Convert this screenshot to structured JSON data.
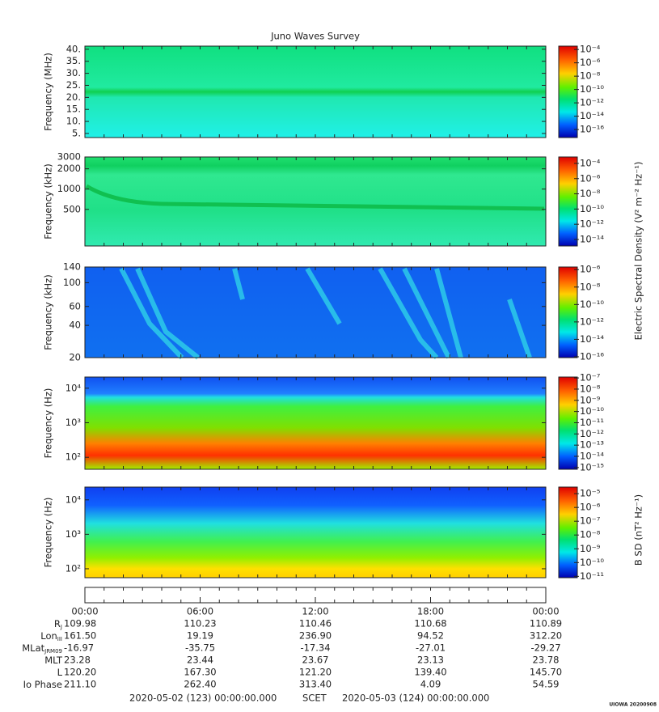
{
  "title": "Juno Waves Survey",
  "chart_data": [
    {
      "type": "spectrogram",
      "ylabel": "Frequency (MHz)",
      "log_y": false,
      "ylim": [
        3.3,
        41.3
      ],
      "yticks": [
        {
          "value": 5,
          "label": "5."
        },
        {
          "value": 10,
          "label": "10."
        },
        {
          "value": 15,
          "label": "15."
        },
        {
          "value": 20,
          "label": "20."
        },
        {
          "value": 25,
          "label": "25."
        },
        {
          "value": 30,
          "label": "30."
        },
        {
          "value": 35,
          "label": "35."
        },
        {
          "value": 40,
          "label": "40."
        }
      ],
      "clim": [
        6.3e-18,
        0.00032
      ],
      "cticks": [
        {
          "value": 0.0001,
          "label": "10⁻⁴"
        },
        {
          "value": 1e-06,
          "label": "10⁻⁶"
        },
        {
          "value": 1e-08,
          "label": "10⁻⁸"
        },
        {
          "value": 1e-10,
          "label": "10⁻¹⁰"
        },
        {
          "value": 1e-12,
          "label": "10⁻¹²"
        },
        {
          "value": 1e-14,
          "label": "10⁻¹⁴"
        },
        {
          "value": 1e-16,
          "label": "10⁻¹⁶"
        }
      ]
    },
    {
      "type": "spectrogram",
      "ylabel": "Frequency (kHz)",
      "log_y": true,
      "ylim": [
        143,
        3000
      ],
      "yticks": [
        500,
        1000,
        2000,
        3000
      ],
      "clim": [
        1.4e-15,
        0.0007
      ],
      "cticks": [
        {
          "value": 0.0001,
          "label": "10⁻⁴"
        },
        {
          "value": 1e-06,
          "label": "10⁻⁶"
        },
        {
          "value": 1e-08,
          "label": "10⁻⁸"
        },
        {
          "value": 1e-10,
          "label": "10⁻¹⁰"
        },
        {
          "value": 1e-12,
          "label": "10⁻¹²"
        },
        {
          "value": 1e-14,
          "label": "10⁻¹⁴"
        }
      ]
    },
    {
      "type": "spectrogram",
      "ylabel": "Frequency (kHz)",
      "log_y": true,
      "ylim": [
        20,
        140
      ],
      "yticks": [
        20,
        40,
        60,
        100,
        140
      ],
      "clim": [
        8e-17,
        2e-06
      ],
      "cticks": [
        {
          "value": 1e-06,
          "label": "10⁻⁶"
        },
        {
          "value": 1e-08,
          "label": "10⁻⁸"
        },
        {
          "value": 1e-10,
          "label": "10⁻¹⁰"
        },
        {
          "value": 1e-12,
          "label": "10⁻¹²"
        },
        {
          "value": 1e-14,
          "label": "10⁻¹⁴"
        },
        {
          "value": 1e-16,
          "label": "10⁻¹⁶"
        }
      ]
    },
    {
      "type": "spectrogram",
      "ylabel": "Frequency (Hz)",
      "log_y": true,
      "ylim": [
        45,
        21000
      ],
      "yticks": [
        {
          "value": 100,
          "label": "10²"
        },
        {
          "value": 1000,
          "label": "10³"
        },
        {
          "value": 10000,
          "label": "10⁴"
        }
      ],
      "clim": [
        7e-16,
        1.2e-07
      ],
      "cticks": [
        {
          "value": 1e-07,
          "label": "10⁻⁷"
        },
        {
          "value": 1e-08,
          "label": "10⁻⁸"
        },
        {
          "value": 1e-09,
          "label": "10⁻⁹"
        },
        {
          "value": 1e-10,
          "label": "10⁻¹⁰"
        },
        {
          "value": 1e-11,
          "label": "10⁻¹¹"
        },
        {
          "value": 1e-12,
          "label": "10⁻¹²"
        },
        {
          "value": 1e-13,
          "label": "10⁻¹³"
        },
        {
          "value": 1e-14,
          "label": "10⁻¹⁴"
        },
        {
          "value": 1e-15,
          "label": "10⁻¹⁵"
        }
      ]
    },
    {
      "type": "spectrogram",
      "ylabel": "Frequency (Hz)",
      "log_y": true,
      "ylim": [
        55,
        23500
      ],
      "yticks": [
        {
          "value": 100,
          "label": "10²"
        },
        {
          "value": 1000,
          "label": "10³"
        },
        {
          "value": 10000,
          "label": "10⁴"
        }
      ],
      "clim": [
        8e-12,
        3e-05
      ],
      "cticks": [
        {
          "value": 1e-05,
          "label": "10⁻⁵"
        },
        {
          "value": 1e-06,
          "label": "10⁻⁶"
        },
        {
          "value": 1e-07,
          "label": "10⁻⁷"
        },
        {
          "value": 1e-08,
          "label": "10⁻⁸"
        },
        {
          "value": 1e-09,
          "label": "10⁻⁹"
        },
        {
          "value": 1e-10,
          "label": "10⁻¹⁰"
        },
        {
          "value": 1e-11,
          "label": "10⁻¹¹"
        }
      ]
    }
  ],
  "colorbar_label_e": "Electric Spectral Density (V² m⁻² Hz⁻¹)",
  "colorbar_label_b": "B SD (nT² Hz⁻¹)",
  "xlim": [
    0,
    24
  ],
  "xticks": [
    {
      "value": 0,
      "label": "00:00"
    },
    {
      "value": 6,
      "label": "06:00"
    },
    {
      "value": 12,
      "label": "12:00"
    },
    {
      "value": 18,
      "label": "18:00"
    },
    {
      "value": 24,
      "label": "00:00"
    }
  ],
  "ephemeris": [
    {
      "label": "R",
      "sub": "J",
      "values": [
        "109.98",
        "110.23",
        "110.46",
        "110.68",
        "110.89"
      ]
    },
    {
      "label": "Lon",
      "sub": "III",
      "values": [
        "161.50",
        "19.19",
        "236.90",
        "94.52",
        "312.20"
      ]
    },
    {
      "label": "MLat",
      "sub": "JRM09",
      "values": [
        "-16.97",
        "-35.75",
        "-17.34",
        "-27.01",
        "-29.27"
      ]
    },
    {
      "label": "MLT",
      "values": [
        "23.28",
        "23.44",
        "23.67",
        "23.13",
        "23.78"
      ]
    },
    {
      "label": "L",
      "values": [
        "120.20",
        "167.30",
        "121.20",
        "139.40",
        "145.70"
      ]
    },
    {
      "label": "Io Phase",
      "values": [
        "211.10",
        "262.40",
        "313.40",
        "4.09",
        "54.59"
      ]
    }
  ],
  "footer": {
    "start": "2020-05-02 (123) 00:00:00.000",
    "middle": "SCET",
    "end": "2020-05-03 (124) 00:00:00.000",
    "stamp": "UIOWA 20200908"
  }
}
